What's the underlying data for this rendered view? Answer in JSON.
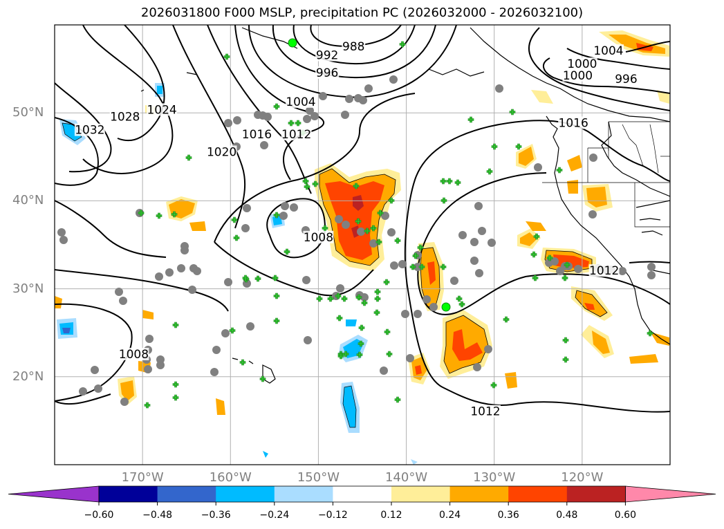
{
  "title": "2026031800 F000 MSLP, precipitation PC (2026032000 - 2026032100)",
  "map": {
    "lat_range": [
      10,
      60
    ],
    "lon_range": [
      -180,
      -110
    ],
    "lat_ticks": [
      {
        "value": 50,
        "label": "50°N"
      },
      {
        "value": 40,
        "label": "40°N"
      },
      {
        "value": 30,
        "label": "30°N"
      },
      {
        "value": 20,
        "label": "20°N"
      }
    ],
    "lon_ticks": [
      {
        "value": -170,
        "label": "170°W"
      },
      {
        "value": -160,
        "label": "160°W"
      },
      {
        "value": -150,
        "label": "150°W"
      },
      {
        "value": -140,
        "label": "140°W"
      },
      {
        "value": -130,
        "label": "130°W"
      },
      {
        "value": -120,
        "label": "120°W"
      }
    ],
    "grid": true
  },
  "isobars": {
    "units": "hPa",
    "labels": [
      {
        "text": "988",
        "lon": -146,
        "lat": 57.5
      },
      {
        "text": "992",
        "lon": -149,
        "lat": 56.5
      },
      {
        "text": "996",
        "lon": -149,
        "lat": 54.5
      },
      {
        "text": "1004",
        "lon": -152,
        "lat": 51.2
      },
      {
        "text": "1012",
        "lon": -152.5,
        "lat": 47.5
      },
      {
        "text": "1016",
        "lon": -157,
        "lat": 47.5
      },
      {
        "text": "1020",
        "lon": -161,
        "lat": 45.5
      },
      {
        "text": "1024",
        "lon": -167.8,
        "lat": 50.3
      },
      {
        "text": "1028",
        "lon": -172,
        "lat": 49.5
      },
      {
        "text": "1032",
        "lon": -176,
        "lat": 48
      },
      {
        "text": "1008",
        "lon": -150,
        "lat": 35.8
      },
      {
        "text": "1008",
        "lon": -171,
        "lat": 22.5
      },
      {
        "text": "1012",
        "lon": -131,
        "lat": 16
      },
      {
        "text": "1004",
        "lon": -117,
        "lat": 57
      },
      {
        "text": "1000",
        "lon": -120,
        "lat": 55.5
      },
      {
        "text": "1000",
        "lon": -120.5,
        "lat": 54.2
      },
      {
        "text": "996",
        "lon": -115,
        "lat": 53.8
      },
      {
        "text": "1016",
        "lon": -121,
        "lat": 48.8
      },
      {
        "text": "1012",
        "lon": -117.5,
        "lat": 32
      }
    ]
  },
  "precip_colorbar": {
    "colors": [
      "#9933cc",
      "#000099",
      "#3366cc",
      "#00bbff",
      "#aaddff",
      "#ffffff",
      "#ffee99",
      "#ffaa00",
      "#ff4400",
      "#bb2222",
      "#ff88aa"
    ],
    "ticks": [
      "−0.60",
      "−0.48",
      "−0.36",
      "−0.24",
      "−0.12",
      "0.12",
      "0.24",
      "0.36",
      "0.48",
      "0.60"
    ]
  },
  "stations": {
    "circle_color": "#808080",
    "cross_color": "#33cc33",
    "highlight_color": "#00ff00"
  }
}
